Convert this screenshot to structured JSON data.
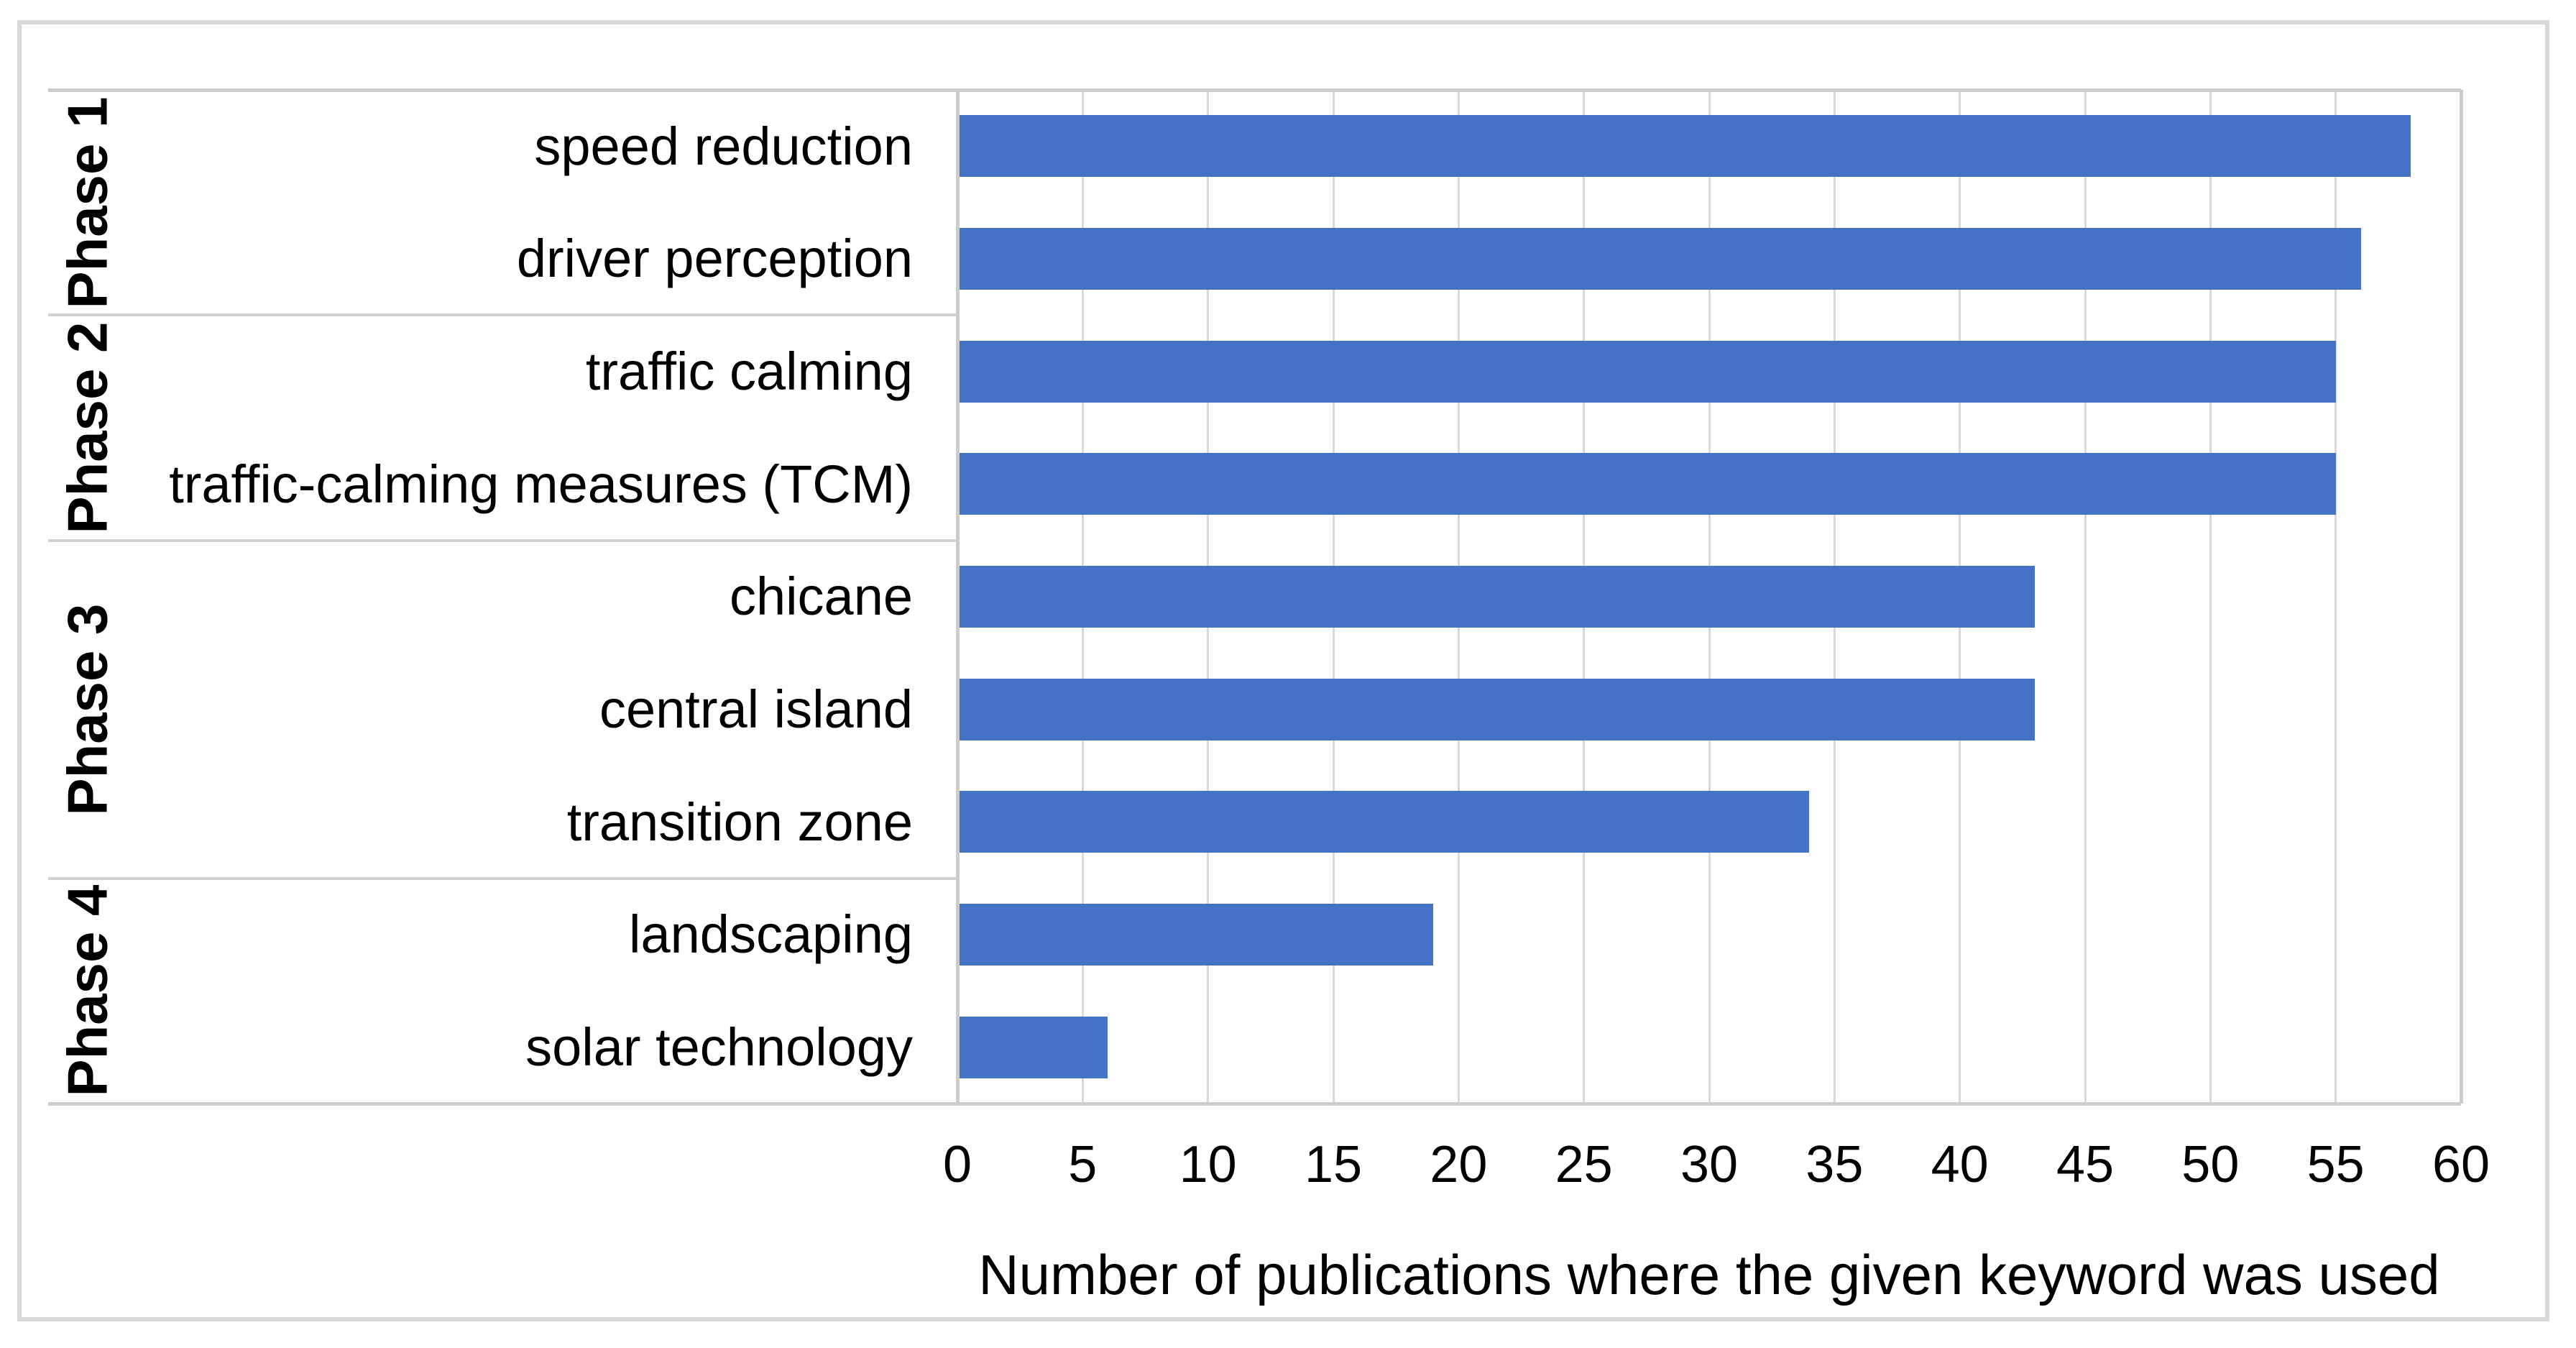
{
  "chart_data": {
    "type": "bar",
    "orientation": "horizontal",
    "xlabel": "Number of publications where the given keyword was used",
    "ylabel": "",
    "xlim": [
      0,
      60
    ],
    "xticks": [
      0,
      5,
      10,
      15,
      20,
      25,
      30,
      35,
      40,
      45,
      50,
      55,
      60
    ],
    "grid": true,
    "legend": "none",
    "groups": [
      {
        "label": "Phase 1",
        "items": [
          {
            "label": "speed reduction",
            "value": 58
          },
          {
            "label": "driver perception",
            "value": 56
          }
        ]
      },
      {
        "label": "Phase 2",
        "items": [
          {
            "label": "traffic calming",
            "value": 55
          },
          {
            "label": "traffic-calming measures (TCM)",
            "value": 55
          }
        ]
      },
      {
        "label": "Phase 3",
        "items": [
          {
            "label": "chicane",
            "value": 43
          },
          {
            "label": "central island",
            "value": 43
          },
          {
            "label": "transition zone",
            "value": 34
          }
        ]
      },
      {
        "label": "Phase 4",
        "items": [
          {
            "label": "landscaping",
            "value": 19
          },
          {
            "label": "solar technology",
            "value": 6
          }
        ]
      }
    ],
    "colors": {
      "bar": "#4472c4",
      "gridline": "#d9d9d9",
      "axis_line": "#cccccc",
      "separator": "#d2d2d2",
      "frame_border": "#d9d9d9",
      "text": "#000000"
    }
  }
}
